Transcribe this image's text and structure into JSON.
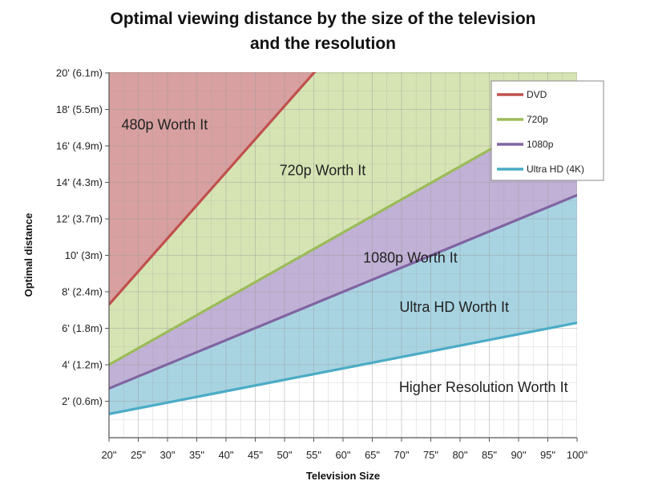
{
  "chart_data": {
    "type": "area",
    "title_lines": [
      "Optimal viewing distance by the size of the television",
      "and the resolution"
    ],
    "xlabel": "Television Size",
    "ylabel": "Optimal distance",
    "x_ticks": [
      "20\"",
      "25\"",
      "30\"",
      "35\"",
      "40\"",
      "45\"",
      "50\"",
      "55\"",
      "60\"",
      "65\"",
      "70\"",
      "75\"",
      "80\"",
      "85\"",
      "90\"",
      "95\"",
      "100\""
    ],
    "y_ticks": [
      "2' (0.6m)",
      "4' (1.2m)",
      "6' (1.8m)",
      "8' (2.4m)",
      "10' (3m)",
      "12' (3.7m)",
      "14' (4.3m)",
      "16' (4.9m)",
      "18' (5.5m)",
      "20' (6.1m)"
    ],
    "xlim": [
      20,
      100
    ],
    "ylim": [
      0,
      20
    ],
    "grid": true,
    "legend_position": "top-right",
    "series": [
      {
        "name": "DVD",
        "color": "#c0504d",
        "fill": "#d8a0a0",
        "x": [
          20,
          55
        ],
        "values": [
          7.3,
          20
        ]
      },
      {
        "name": "720p",
        "color": "#9bbb59",
        "fill": "#d6e4b4",
        "x": [
          20,
          100
        ],
        "values": [
          4.0,
          18.5
        ]
      },
      {
        "name": "1080p",
        "color": "#8064a2",
        "fill": "#c1b1d6",
        "x": [
          20,
          100
        ],
        "values": [
          2.7,
          13.3
        ]
      },
      {
        "name": "Ultra HD (4K)",
        "color": "#4bacc6",
        "fill": "#a8d4e2",
        "x": [
          20,
          100
        ],
        "values": [
          1.3,
          6.3
        ]
      }
    ],
    "region_labels": [
      {
        "text": "480p Worth It",
        "x": 29.5,
        "y": 16.9
      },
      {
        "text": "720p Worth It",
        "x": 56.5,
        "y": 14.4
      },
      {
        "text": "1080p Worth It",
        "x": 71.5,
        "y": 9.6
      },
      {
        "text": "Ultra HD Worth It",
        "x": 79,
        "y": 6.9
      },
      {
        "text": "Higher Resolution Worth It",
        "x": 84,
        "y": 2.5
      }
    ]
  }
}
